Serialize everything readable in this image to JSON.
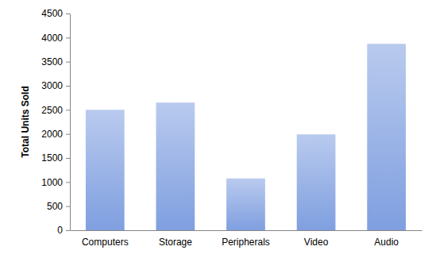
{
  "chart_data": {
    "type": "bar",
    "y_label": "Total Units Sold",
    "categories": [
      "Computers",
      "Storage",
      "Peripherals",
      "Video",
      "Audio"
    ],
    "values": [
      2500,
      2650,
      1075,
      1990,
      3870
    ],
    "color": "#7f9fe0",
    "ylim": [
      0,
      4500
    ],
    "yticks": [
      0,
      500,
      1000,
      1500,
      2000,
      2500,
      3000,
      3500,
      4000,
      4500
    ],
    "grid": false
  }
}
